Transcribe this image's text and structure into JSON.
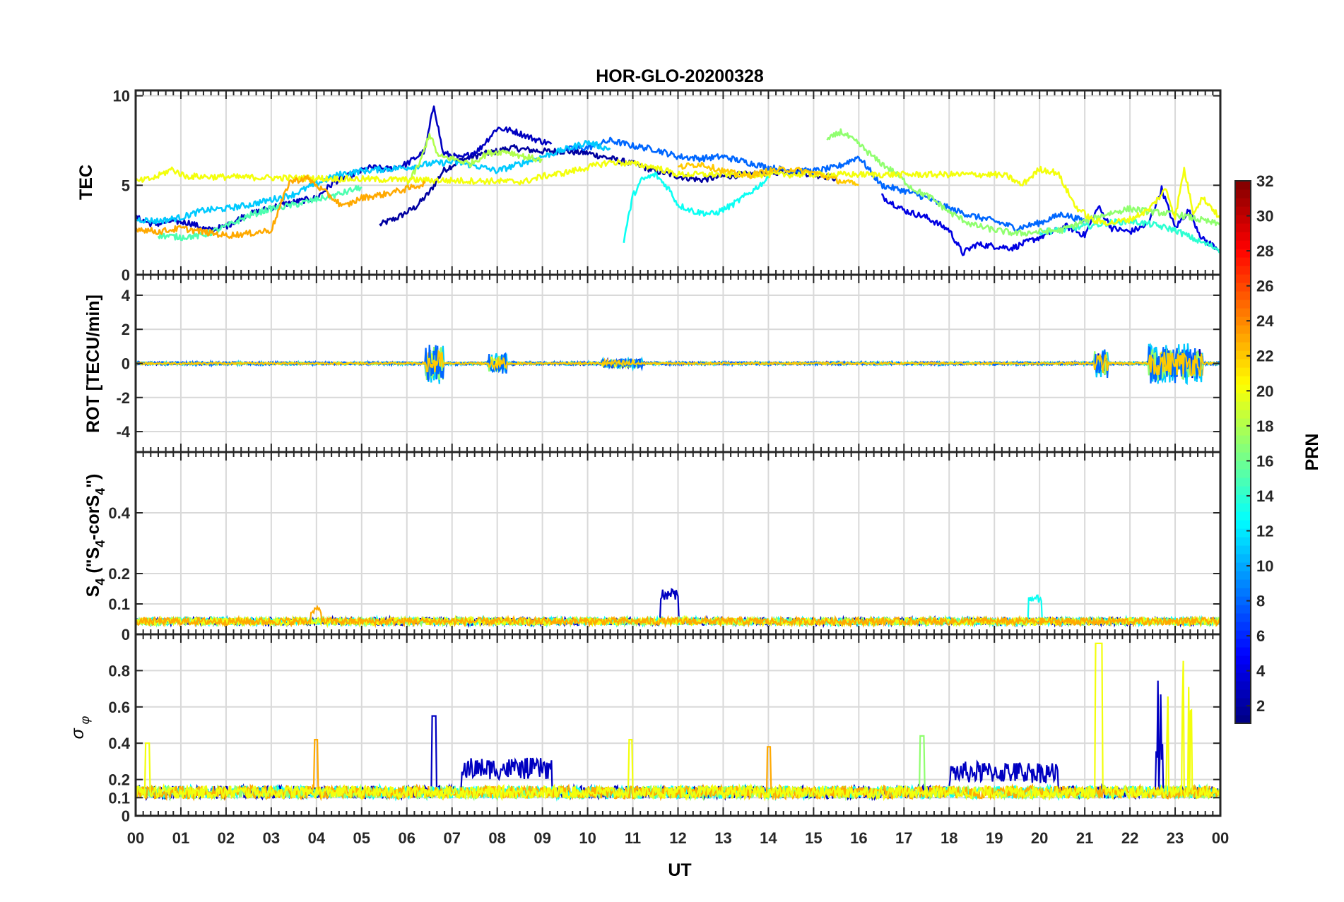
{
  "chart_data": {
    "type": "line",
    "title": "HOR-GLO-20200328",
    "xlabel": "UT",
    "x_ticks": [
      "00",
      "01",
      "02",
      "03",
      "04",
      "05",
      "06",
      "07",
      "08",
      "09",
      "10",
      "11",
      "12",
      "13",
      "14",
      "15",
      "16",
      "17",
      "18",
      "19",
      "20",
      "21",
      "22",
      "23",
      "00"
    ],
    "xlim": [
      0,
      24
    ],
    "grid": true,
    "panels": [
      {
        "id": "tec",
        "ylabel": "TEC",
        "ylim": [
          0,
          10.3
        ],
        "y_ticks": [
          0,
          5,
          10
        ],
        "y_tick_labels": [
          "0",
          "5",
          "10"
        ],
        "series": [
          {
            "prn": 2,
            "x": [
              5.4,
              5.8,
              6.2,
              6.5,
              6.8,
              7.2,
              7.6,
              8.0,
              8.3,
              8.6,
              9.0,
              9.5,
              10.0,
              10.5,
              11.0,
              11.5,
              12.0,
              12.5,
              13.0,
              13.5,
              14.0,
              14.5,
              15.0,
              15.5
            ],
            "y": [
              2.8,
              3.2,
              3.8,
              4.6,
              5.8,
              6.4,
              6.7,
              6.9,
              7.1,
              7.0,
              6.9,
              6.9,
              6.8,
              6.5,
              6.2,
              5.8,
              5.5,
              5.3,
              5.5,
              5.6,
              5.7,
              5.8,
              5.6,
              5.4
            ]
          },
          {
            "prn": 3,
            "x": [
              0.0,
              0.4,
              0.8,
              1.2,
              1.6,
              2.0,
              2.4,
              2.8,
              3.2,
              3.6,
              4.0,
              4.4,
              4.8,
              5.2,
              5.6,
              6.0,
              6.4,
              6.6,
              6.8,
              7.2,
              7.6,
              8.0,
              8.4,
              8.8,
              9.2
            ],
            "y": [
              3.2,
              2.8,
              3.0,
              2.9,
              2.5,
              2.7,
              3.3,
              3.6,
              3.9,
              4.1,
              4.3,
              5.2,
              5.6,
              6.0,
              5.9,
              6.2,
              6.9,
              9.5,
              6.8,
              6.5,
              7.0,
              8.2,
              8.0,
              7.6,
              7.3
            ]
          },
          {
            "prn": 4,
            "x": [
              16.5,
              17.0,
              17.5,
              18.0,
              18.3,
              18.6,
              19.0,
              19.4,
              19.8,
              20.2,
              20.6,
              21.0,
              21.3,
              21.6,
              22.0,
              22.4,
              22.7,
              23.0,
              23.3,
              23.6,
              24.0
            ],
            "y": [
              4.4,
              3.6,
              3.2,
              2.5,
              1.2,
              1.7,
              1.6,
              1.5,
              1.9,
              2.3,
              2.7,
              2.2,
              3.8,
              2.6,
              2.4,
              2.8,
              4.8,
              2.6,
              3.6,
              2.0,
              1.4
            ]
          },
          {
            "prn": 8,
            "x": [
              9.5,
              10.0,
              10.5,
              11.0,
              11.5,
              12.0,
              12.5,
              13.0,
              13.5,
              14.0,
              14.5,
              15.0,
              15.5,
              16.0,
              16.5,
              17.0,
              17.5,
              18.0,
              18.5,
              19.0,
              19.5,
              20.0,
              20.5,
              21.0
            ],
            "y": [
              7.0,
              7.1,
              7.5,
              7.2,
              7.0,
              6.6,
              6.5,
              6.6,
              6.3,
              6.0,
              5.8,
              5.8,
              6.0,
              6.6,
              5.0,
              4.7,
              4.3,
              3.7,
              3.3,
              3.0,
              2.6,
              2.9,
              3.4,
              3.0
            ]
          },
          {
            "prn": 11,
            "x": [
              0.0,
              0.5,
              1.0,
              1.5,
              2.0,
              2.5,
              3.0,
              3.5,
              4.0,
              4.5,
              5.0,
              5.5,
              6.0,
              6.5,
              7.0,
              7.5,
              8.0,
              8.5,
              9.0,
              9.5,
              10.0,
              10.5
            ],
            "y": [
              3.1,
              3.0,
              3.2,
              3.6,
              3.7,
              3.9,
              4.2,
              4.5,
              5.1,
              5.6,
              5.8,
              5.9,
              6.0,
              6.2,
              6.3,
              6.1,
              5.8,
              6.2,
              6.6,
              7.0,
              7.4,
              7.0
            ]
          },
          {
            "prn": 13,
            "x": [
              10.8,
              11.0,
              11.2,
              11.5,
              11.8,
              12.0,
              12.4,
              12.8,
              13.2,
              13.6,
              14.0
            ],
            "y": [
              1.9,
              4.4,
              5.3,
              5.6,
              4.8,
              3.9,
              3.5,
              3.4,
              3.9,
              4.6,
              5.4
            ]
          },
          {
            "prn": 14,
            "x": [
              20.0,
              20.5,
              21.0,
              21.5,
              22.0,
              22.5,
              23.0,
              23.5,
              24.0
            ],
            "y": [
              2.4,
              2.5,
              2.7,
              2.9,
              3.0,
              2.8,
              2.5,
              1.9,
              1.4
            ]
          },
          {
            "prn": 15,
            "x": [
              0.5,
              1.0,
              1.5,
              2.0,
              2.5,
              3.0,
              3.5,
              4.0,
              4.5,
              5.0
            ],
            "y": [
              2.2,
              2.1,
              2.2,
              2.7,
              3.3,
              3.7,
              3.9,
              4.2,
              4.5,
              4.9
            ]
          },
          {
            "prn": 17,
            "x": [
              15.3,
              15.6,
              16.0,
              16.4,
              16.8,
              17.2,
              17.6,
              18.0,
              18.5,
              19.0,
              19.5,
              20.0,
              20.5,
              21.0,
              21.5,
              22.0,
              22.5,
              23.0,
              23.5,
              24.0
            ],
            "y": [
              7.5,
              8.0,
              7.3,
              6.4,
              5.7,
              4.8,
              4.3,
              3.5,
              2.8,
              2.5,
              2.3,
              2.4,
              2.5,
              3.0,
              3.4,
              3.7,
              3.5,
              3.4,
              3.1,
              2.8
            ]
          },
          {
            "prn": 18,
            "x": [
              6.0,
              6.3,
              6.5,
              6.7,
              7.0,
              7.4,
              7.8,
              8.2,
              8.6,
              9.0
            ],
            "y": [
              5.0,
              6.3,
              7.9,
              6.6,
              6.5,
              6.2,
              6.8,
              6.9,
              6.6,
              6.4
            ]
          },
          {
            "prn": 20,
            "x": [
              0.0,
              0.4,
              0.8,
              1.1,
              8.6,
              9.0,
              9.5,
              10.0,
              10.5,
              11.0,
              11.5,
              12.0,
              19.0,
              19.3,
              19.6,
              20.0,
              20.4,
              20.8,
              21.2,
              21.6,
              22.0,
              22.4,
              22.8,
              23.0,
              23.2,
              23.4,
              23.6,
              23.8,
              24.0
            ],
            "y": [
              5.2,
              5.4,
              5.9,
              5.5,
              5.2,
              5.5,
              5.7,
              6.0,
              6.3,
              6.2,
              6.0,
              5.6,
              5.6,
              5.5,
              5.0,
              5.9,
              5.7,
              3.8,
              3.0,
              2.9,
              3.1,
              3.6,
              4.8,
              3.2,
              5.9,
              3.5,
              4.3,
              3.8,
              3.1
            ]
          },
          {
            "prn": 22,
            "x": [
              12.0,
              12.5,
              13.0,
              13.5,
              14.0,
              14.5,
              15.0,
              15.5,
              16.0
            ],
            "y": [
              6.0,
              6.2,
              5.8,
              5.5,
              5.8,
              5.9,
              5.7,
              5.3,
              5.0
            ]
          },
          {
            "prn": 23,
            "x": [
              0.0,
              0.5,
              1.0,
              1.5,
              2.0,
              2.5,
              3.0,
              3.4,
              3.8,
              4.2,
              4.6,
              5.0,
              5.5,
              6.0,
              6.4
            ],
            "y": [
              2.6,
              2.4,
              2.6,
              2.4,
              2.2,
              2.3,
              2.5,
              5.2,
              5.4,
              4.6,
              3.8,
              4.3,
              4.5,
              4.8,
              5.1
            ]
          }
        ]
      },
      {
        "id": "rot",
        "ylabel": "ROT [TECU/min]",
        "ylim": [
          -5.2,
          5.2
        ],
        "y_ticks": [
          -4,
          -2,
          0,
          2,
          4
        ],
        "y_tick_labels": [
          "-4",
          "-2",
          "0",
          "2",
          "4"
        ]
      },
      {
        "id": "s4",
        "ylabel": "S4 (\"S4-corS4\")",
        "ylim": [
          0,
          0.6
        ],
        "y_ticks": [
          0,
          0.1,
          0.2,
          0.4
        ],
        "y_tick_labels": [
          "0",
          "0.1",
          "0.2",
          "0.4"
        ]
      },
      {
        "id": "sigma",
        "ylabel": "σ φ",
        "ylim": [
          0,
          1
        ],
        "y_ticks": [
          0,
          0.1,
          0.2,
          0.4,
          0.6,
          0.8
        ],
        "y_tick_labels": [
          "0",
          "0.1",
          "0.2",
          "0.4",
          "0.6",
          "0.8"
        ]
      }
    ],
    "colorbar": {
      "label": "PRN",
      "colormap": "jet",
      "range": [
        1,
        32
      ],
      "tick_labels": [
        "2",
        "4",
        "6",
        "8",
        "10",
        "12",
        "14",
        "16",
        "18",
        "20",
        "22",
        "24",
        "26",
        "28",
        "30",
        "32"
      ]
    }
  }
}
